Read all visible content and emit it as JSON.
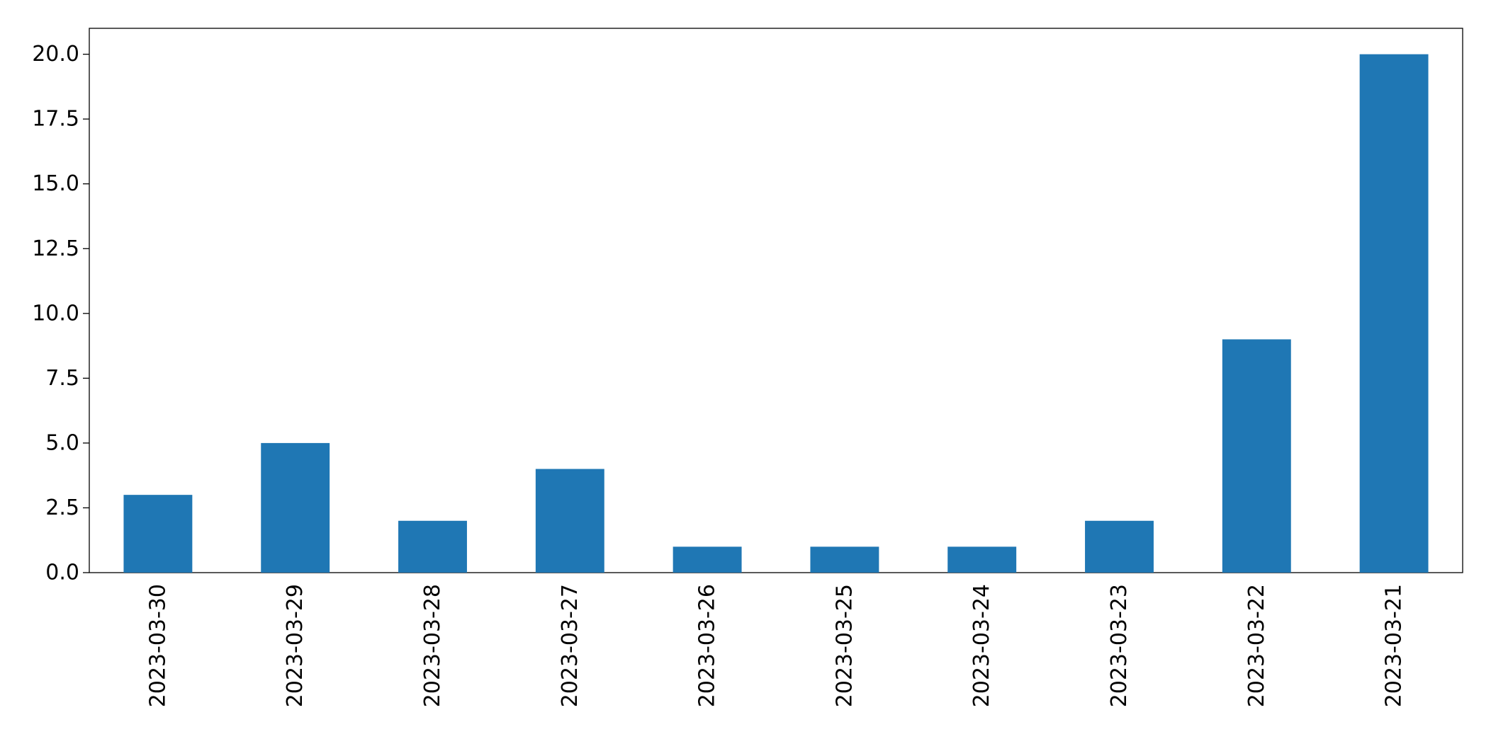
{
  "chart_data": {
    "type": "bar",
    "categories": [
      "2023-03-30",
      "2023-03-29",
      "2023-03-28",
      "2023-03-27",
      "2023-03-26",
      "2023-03-25",
      "2023-03-24",
      "2023-03-23",
      "2023-03-22",
      "2023-03-21"
    ],
    "values": [
      3,
      5,
      2,
      4,
      1,
      1,
      1,
      2,
      9,
      20
    ],
    "color": "#1f77b4",
    "ylim": [
      0,
      21
    ],
    "yticks": [
      {
        "value": 0,
        "label": "0.0"
      },
      {
        "value": 2.5,
        "label": "2.5"
      },
      {
        "value": 5,
        "label": "5.0"
      },
      {
        "value": 7.5,
        "label": "7.5"
      },
      {
        "value": 10,
        "label": "10.0"
      },
      {
        "value": 12.5,
        "label": "12.5"
      },
      {
        "value": 15,
        "label": "15.0"
      },
      {
        "value": 17.5,
        "label": "17.5"
      },
      {
        "value": 20,
        "label": "20.0"
      }
    ],
    "grid": false
  }
}
